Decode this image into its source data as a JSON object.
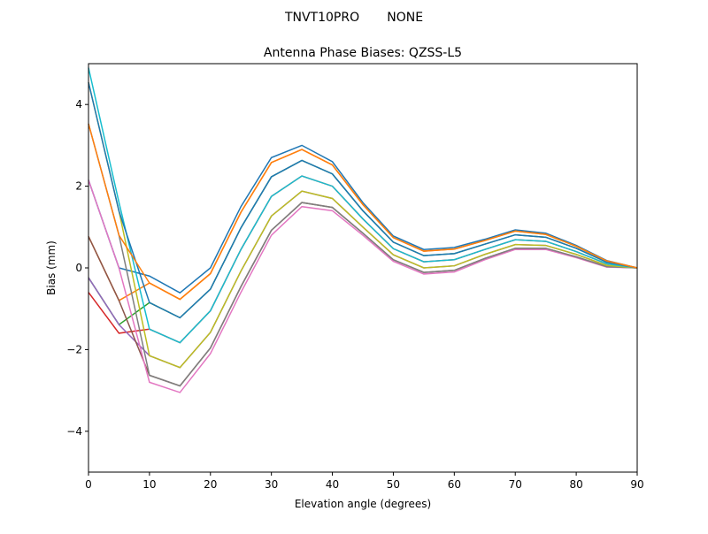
{
  "chart_data": {
    "type": "line",
    "suptitle": "TNVT10PRO       NONE",
    "title": "Antenna Phase Biases: QZSS-L5",
    "xlabel": "Elevation angle (degrees)",
    "ylabel": "Bias (mm)",
    "xlim": [
      0,
      90
    ],
    "ylim": [
      -5,
      5
    ],
    "xticks": [
      0,
      10,
      20,
      30,
      40,
      50,
      60,
      70,
      80,
      90
    ],
    "yticks": [
      -4,
      -2,
      0,
      2,
      4
    ],
    "ytick_labels": [
      "−4",
      "−2",
      "0",
      "2",
      "4"
    ],
    "grid": false,
    "colors": [
      "#1f77b4",
      "#ff7f0e",
      "#2ca02c",
      "#d62728",
      "#9467bd",
      "#8c564b",
      "#e377c2",
      "#7f7f7f",
      "#bcbd22",
      "#17becf"
    ],
    "x": [
      0,
      5,
      10,
      15,
      20,
      25,
      30,
      35,
      40,
      45,
      50,
      55,
      60,
      65,
      70,
      75,
      80,
      85,
      90
    ],
    "series": [
      {
        "values": [
          2.15,
          0,
          -0.2,
          -0.61,
          0,
          1.5,
          2.7,
          3.0,
          2.6,
          1.6,
          0.78,
          0.45,
          0.5,
          0.7,
          0.93,
          0.85,
          0.55,
          0.18,
          0
        ]
      },
      {
        "values": [
          0.77,
          -0.8,
          -0.37,
          -0.77,
          -0.14,
          1.36,
          2.58,
          2.9,
          2.52,
          1.55,
          0.74,
          0.41,
          0.46,
          0.67,
          0.9,
          0.82,
          0.53,
          0.17,
          0
        ]
      },
      {
        "values": [
          -0.24,
          -1.39,
          -0.85,
          -1.22,
          -0.52,
          0.98,
          2.23,
          2.63,
          2.3,
          1.4,
          0.63,
          0.3,
          0.35,
          0.58,
          0.81,
          0.75,
          0.48,
          0.14,
          0
        ]
      },
      {
        "values": [
          -0.6,
          -1.6,
          -1.5,
          -1.83,
          -1.05,
          0.45,
          1.75,
          2.25,
          2.0,
          1.2,
          0.47,
          0.15,
          0.2,
          0.45,
          0.69,
          0.65,
          0.4,
          0.1,
          0
        ]
      },
      {
        "values": [
          -0.24,
          -1.39,
          -2.15,
          -2.44,
          -1.58,
          -0.08,
          1.27,
          1.88,
          1.7,
          1.0,
          0.32,
          0,
          0.05,
          0.33,
          0.57,
          0.55,
          0.33,
          0.06,
          0
        ]
      },
      {
        "values": [
          0.77,
          -0.8,
          -2.63,
          -2.89,
          -1.96,
          -0.46,
          0.92,
          1.6,
          1.48,
          0.85,
          0.2,
          -0.11,
          -0.06,
          0.23,
          0.48,
          0.48,
          0.27,
          0.03,
          0
        ]
      },
      {
        "values": [
          2.15,
          0,
          -2.8,
          -3.05,
          -2.1,
          -0.6,
          0.8,
          1.5,
          1.4,
          0.8,
          0.16,
          -0.15,
          -0.1,
          0.2,
          0.45,
          0.45,
          0.25,
          0.02,
          0
        ]
      },
      {
        "values": [
          3.53,
          0.8,
          -2.63,
          -2.89,
          -1.96,
          -0.46,
          0.92,
          1.6,
          1.48,
          0.85,
          0.2,
          -0.11,
          -0.06,
          0.23,
          0.48,
          0.48,
          0.27,
          0.03,
          0
        ]
      },
      {
        "values": [
          4.54,
          1.39,
          -2.15,
          -2.44,
          -1.58,
          -0.08,
          1.27,
          1.88,
          1.7,
          1.0,
          0.32,
          0,
          0.05,
          0.33,
          0.57,
          0.55,
          0.33,
          0.06,
          0
        ]
      },
      {
        "values": [
          4.9,
          1.6,
          -1.5,
          -1.83,
          -1.05,
          0.45,
          1.75,
          2.25,
          2.0,
          1.2,
          0.47,
          0.15,
          0.2,
          0.45,
          0.69,
          0.65,
          0.4,
          0.1,
          0
        ]
      },
      {
        "values": [
          4.54,
          1.39,
          -0.85,
          -1.22,
          -0.52,
          0.98,
          2.23,
          2.63,
          2.3,
          1.4,
          0.63,
          0.3,
          0.35,
          0.58,
          0.81,
          0.75,
          0.48,
          0.14,
          0
        ]
      },
      {
        "values": [
          3.53,
          0.8,
          -0.37,
          -0.77,
          -0.14,
          1.36,
          2.58,
          2.9,
          2.52,
          1.55,
          0.74,
          0.41,
          0.46,
          0.67,
          0.9,
          0.82,
          0.53,
          0.17,
          0
        ]
      }
    ]
  }
}
